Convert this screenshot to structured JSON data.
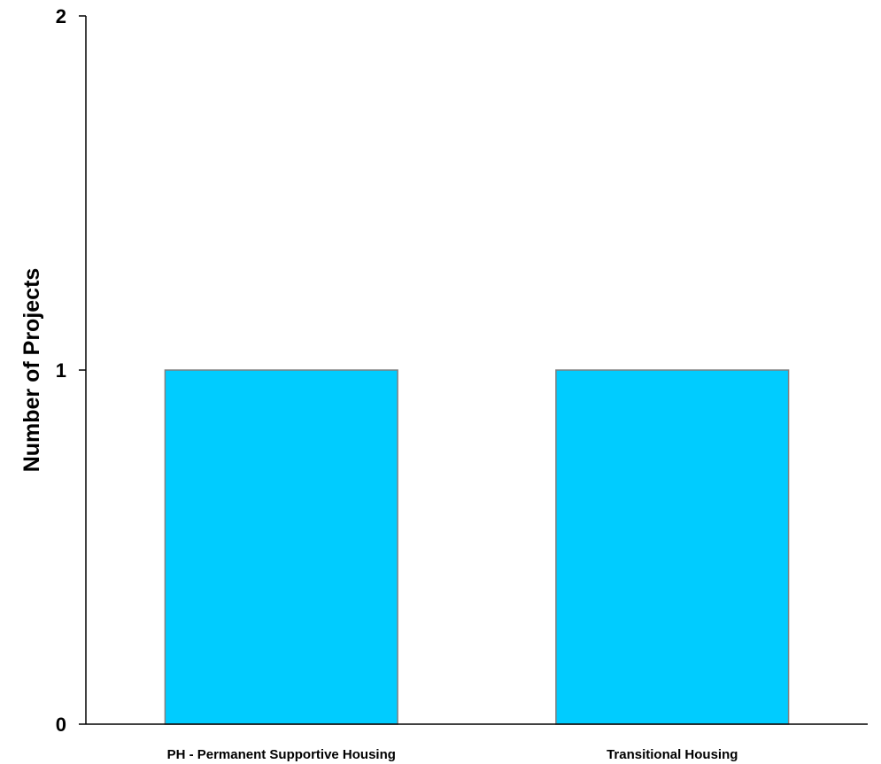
{
  "chart_data": {
    "type": "bar",
    "title": "",
    "xlabel": "",
    "ylabel": "Number of Projects",
    "categories": [
      "PH - Permanent Supportive Housing",
      "Transitional Housing"
    ],
    "values": [
      1,
      1
    ],
    "ylim": [
      0,
      2
    ],
    "yticks": [
      0,
      1,
      2
    ],
    "grid": false,
    "legend": "none",
    "bar_color": "#00CCFF",
    "bar_edge_color": "#808080"
  }
}
